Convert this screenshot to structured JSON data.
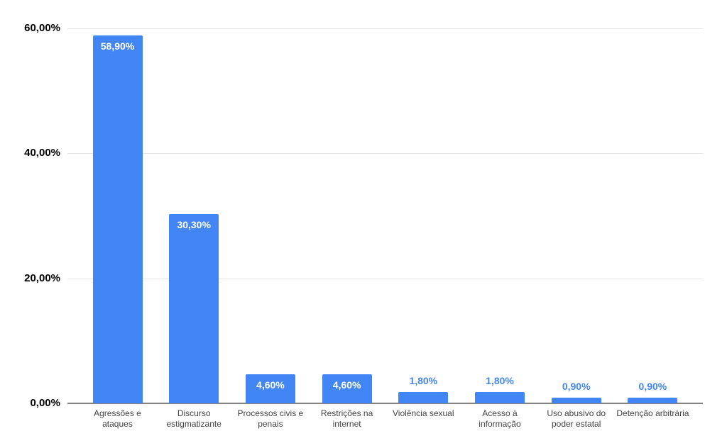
{
  "chart_data": {
    "type": "bar",
    "title": "",
    "xlabel": "",
    "ylabel": "",
    "categories": [
      "Agressões e ataques",
      "Discurso estigmatizante",
      "Processos civis e penais",
      "Restrições na internet",
      "Violência sexual",
      "Acesso à informação",
      "Uso abusivo do poder estatal",
      "Detenção arbitrária"
    ],
    "values": [
      58.9,
      30.3,
      4.6,
      4.6,
      1.8,
      1.8,
      0.9,
      0.9
    ],
    "value_labels": [
      "58,90%",
      "30,30%",
      "4,60%",
      "4,60%",
      "1,80%",
      "1,80%",
      "0,90%",
      "0,90%"
    ],
    "ylim": [
      0,
      60
    ],
    "y_ticks": [
      0,
      20,
      40,
      60
    ],
    "y_tick_labels": [
      "0,00%",
      "20,00%",
      "40,00%",
      "60,00%"
    ],
    "grid": true,
    "legend_position": "none",
    "colors": {
      "bar": "#4285f4",
      "value_label_inside": "#ffffff",
      "value_label_outside": "#4285f4",
      "y_tick_label": "#000000",
      "category_label": "#424242",
      "gridline": "#e6e6e6",
      "baseline": "#808080",
      "background": "#ffffff"
    }
  }
}
